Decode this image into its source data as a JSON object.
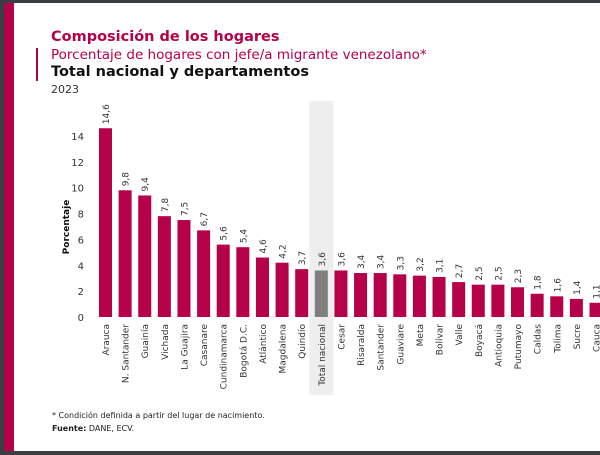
{
  "header": {
    "title": "Composición de los hogares",
    "subtitle": "Porcentaje de hogares con jefe/a migrante venezolano*",
    "heading": "Total nacional y departamentos",
    "year": "2023"
  },
  "footer": {
    "note": "* Condición definida a partir del lugar de nacimiento.",
    "source_label": "Fuente:",
    "source_text": " DANE, ECV."
  },
  "colors": {
    "bar": "#b5004a",
    "highlight_bar": "#7f7f7f",
    "highlight_band": "#eeeeee",
    "accent": "#b5004a"
  },
  "chart_data": {
    "type": "bar",
    "ylabel": "Porcentaje",
    "xlabel": "",
    "ylim": [
      0,
      14
    ],
    "yticks": [
      0,
      2,
      4,
      6,
      8,
      10,
      12,
      14
    ],
    "grid": false,
    "highlight": "Total nacional",
    "categories": [
      "Arauca",
      "N. Santander",
      "Guainía",
      "Vichada",
      "La Guajira",
      "Casanare",
      "Cundinamarca",
      "Bogotá D.C.",
      "Atlántico",
      "Magdalena",
      "Quindío",
      "Total nacional",
      "Cesar",
      "Risaralda",
      "Santander",
      "Guaviare",
      "Meta",
      "Bolívar",
      "Valle",
      "Boyacá",
      "Antioquia",
      "Putumayo",
      "Caldas",
      "Tolima",
      "Sucre",
      "Cauca"
    ],
    "values": [
      14.6,
      9.8,
      9.4,
      7.8,
      7.5,
      6.7,
      5.6,
      5.4,
      4.6,
      4.2,
      3.7,
      3.6,
      3.6,
      3.4,
      3.4,
      3.3,
      3.2,
      3.1,
      2.7,
      2.5,
      2.5,
      2.3,
      1.8,
      1.6,
      1.4,
      1.1
    ]
  }
}
